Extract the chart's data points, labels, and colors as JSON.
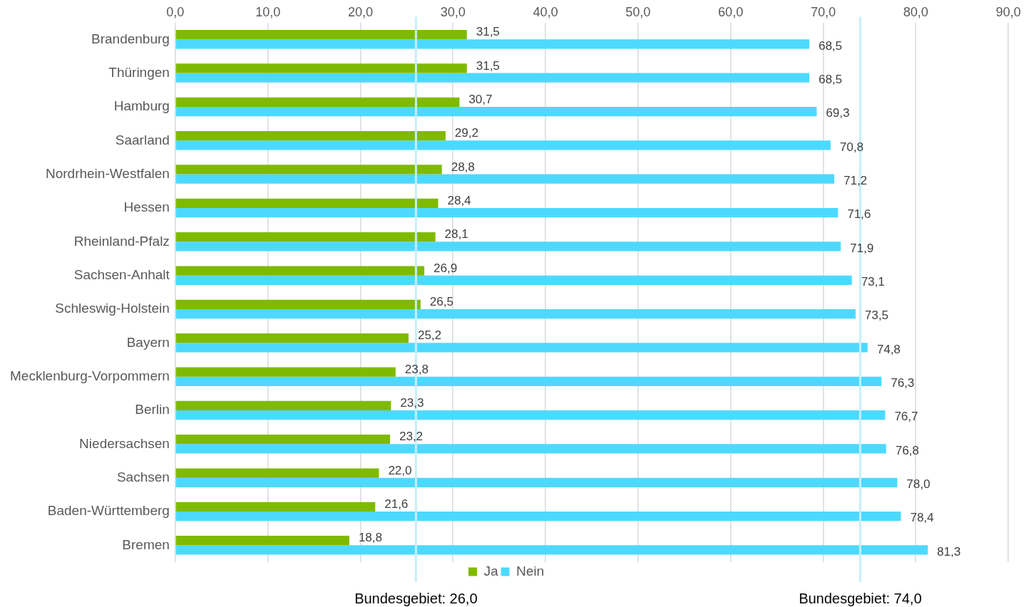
{
  "chart_data": {
    "type": "bar",
    "orientation": "horizontal",
    "categories": [
      "Brandenburg",
      "Thüringen",
      "Hamburg",
      "Saarland",
      "Nordrhein-Westfalen",
      "Hessen",
      "Rheinland-Pfalz",
      "Sachsen-Anhalt",
      "Schleswig-Holstein",
      "Bayern",
      "Mecklenburg-Vorpommern",
      "Berlin",
      "Niedersachsen",
      "Sachsen",
      "Baden-Württemberg",
      "Bremen"
    ],
    "series": [
      {
        "name": "Ja",
        "color": "#7fba00",
        "values": [
          31.5,
          31.5,
          30.7,
          29.2,
          28.8,
          28.4,
          28.1,
          26.9,
          26.5,
          25.2,
          23.8,
          23.3,
          23.2,
          22.0,
          21.6,
          18.8
        ],
        "value_labels": [
          "31,5",
          "31,5",
          "30,7",
          "29,2",
          "28,8",
          "28,4",
          "28,1",
          "26,9",
          "26,5",
          "25,2",
          "23,8",
          "23,3",
          "23,2",
          "22,0",
          "21,6",
          "18,8"
        ]
      },
      {
        "name": "Nein",
        "color": "#4dd9ff",
        "values": [
          68.5,
          68.5,
          69.3,
          70.8,
          71.2,
          71.6,
          71.9,
          73.1,
          73.5,
          74.8,
          76.3,
          76.7,
          76.8,
          78.0,
          78.4,
          81.3
        ],
        "value_labels": [
          "68,5",
          "68,5",
          "69,3",
          "70,8",
          "71,2",
          "71,6",
          "71,9",
          "73,1",
          "73,5",
          "74,8",
          "76,3",
          "76,7",
          "76,8",
          "78,0",
          "78,4",
          "81,3"
        ]
      }
    ],
    "xlim": [
      0,
      90
    ],
    "xticks": [
      {
        "value": 0,
        "label": "0,0"
      },
      {
        "value": 10,
        "label": "10,0"
      },
      {
        "value": 20,
        "label": "20,0"
      },
      {
        "value": 30,
        "label": "30,0"
      },
      {
        "value": 40,
        "label": "40,0"
      },
      {
        "value": 50,
        "label": "50,0"
      },
      {
        "value": 60,
        "label": "60,0"
      },
      {
        "value": 70,
        "label": "70,0"
      },
      {
        "value": 80,
        "label": "80,0"
      },
      {
        "value": 90,
        "label": "90,0"
      }
    ],
    "ref_lines": [
      {
        "axis": "x",
        "value": 26.0,
        "label": "Bundesgebiet: 26,0",
        "color": "#c5eefa"
      },
      {
        "axis": "x",
        "value": 74.0,
        "label": "Bundesgebiet: 74,0",
        "color": "#c5eefa"
      }
    ],
    "grid": "x",
    "legend": "bottom"
  }
}
